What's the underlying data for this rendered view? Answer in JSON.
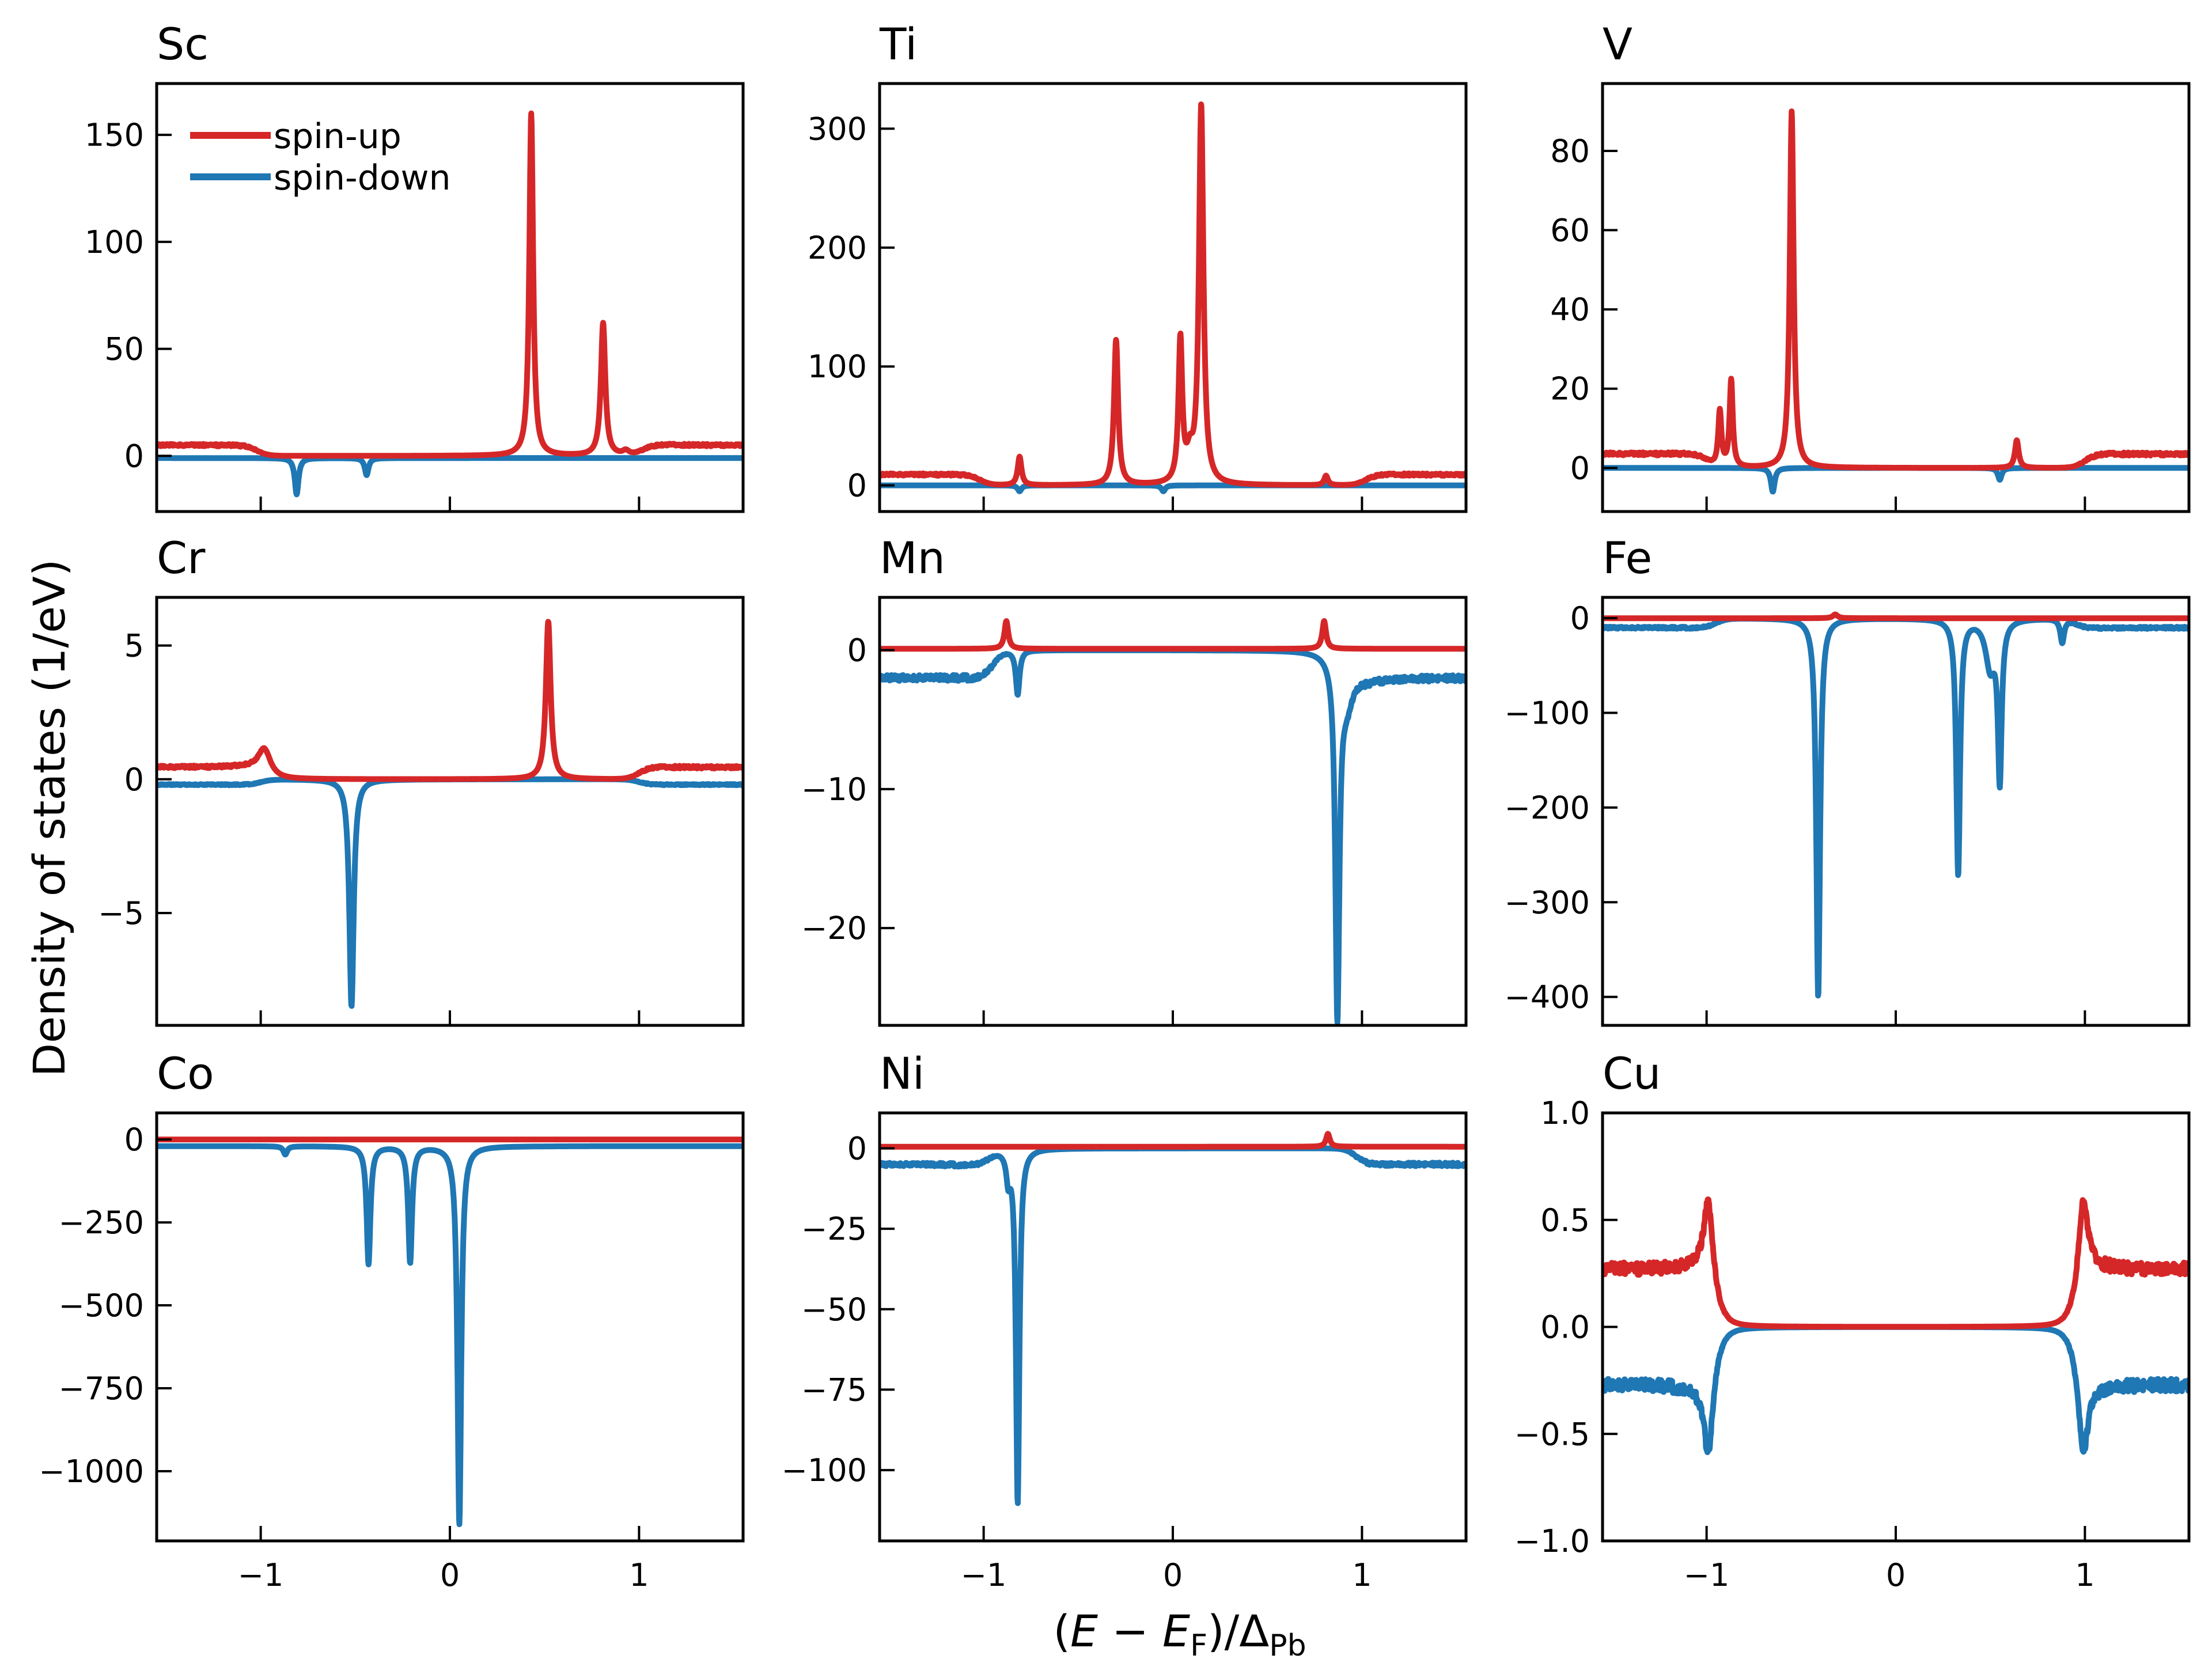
{
  "figure": {
    "ylabel": "Density of states (1/eV)",
    "xlabel_parts": {
      "open": "(",
      "E": "E",
      "minus": " − ",
      "EF": "E",
      "F_sub": "F",
      "mid": ")/Δ",
      "Pb_sub": "Pb"
    },
    "legend": [
      "spin-up",
      "spin-down"
    ],
    "colors": {
      "spin_up": "#d62728",
      "spin_down": "#1f77b4"
    }
  },
  "chart_data": [
    {
      "type": "line",
      "title": "Sc",
      "xlim": [
        -1.55,
        1.55
      ],
      "ylim": [
        -26,
        174
      ],
      "xticks": [
        -1,
        0,
        1
      ],
      "xtick_labels": [
        "−1",
        "0",
        "1"
      ],
      "yticks": [
        0,
        50,
        100,
        150
      ],
      "ytick_labels": [
        "0",
        "50",
        "100",
        "150"
      ],
      "series": [
        {
          "name": "spin-up",
          "baseline": 5,
          "gap": 1.02,
          "peaks": [
            [
              0.43,
              160,
              0.012
            ],
            [
              0.81,
              62,
              0.014
            ],
            [
              0.93,
              2,
              0.02
            ]
          ]
        },
        {
          "name": "spin-down",
          "baseline": -1,
          "gap": 0,
          "peaks": [
            [
              -0.81,
              -17,
              0.012
            ],
            [
              -0.44,
              -8,
              0.012
            ]
          ]
        }
      ]
    },
    {
      "type": "line",
      "title": "Ti",
      "xlim": [
        -1.55,
        1.55
      ],
      "ylim": [
        -22,
        338
      ],
      "xticks": [
        -1,
        0,
        1
      ],
      "xtick_labels": [
        "−1",
        "0",
        "1"
      ],
      "yticks": [
        0,
        100,
        200,
        300
      ],
      "ytick_labels": [
        "0",
        "100",
        "200",
        "300"
      ],
      "series": [
        {
          "name": "spin-up",
          "baseline": 9,
          "gap": 1.02,
          "peaks": [
            [
              -0.81,
              24,
              0.012
            ],
            [
              -0.3,
              122,
              0.013
            ],
            [
              0.04,
              120,
              0.012
            ],
            [
              0.09,
              20,
              0.02
            ],
            [
              0.15,
              318,
              0.014
            ],
            [
              0.81,
              8,
              0.012
            ]
          ]
        },
        {
          "name": "spin-down",
          "baseline": 0,
          "gap": 0,
          "peaks": [
            [
              -0.81,
              -5,
              0.012
            ],
            [
              -0.05,
              -5,
              0.012
            ]
          ]
        }
      ]
    },
    {
      "type": "line",
      "title": "V",
      "xlim": [
        -1.55,
        1.55
      ],
      "ylim": [
        -11,
        97
      ],
      "xticks": [
        -1,
        0,
        1
      ],
      "xtick_labels": [
        "−1",
        "0",
        "1"
      ],
      "yticks": [
        0,
        20,
        40,
        60,
        80
      ],
      "ytick_labels": [
        "0",
        "20",
        "40",
        "60",
        "80"
      ],
      "series": [
        {
          "name": "spin-up",
          "baseline": 3.5,
          "gap": 1.0,
          "peaks": [
            [
              -0.93,
              14,
              0.01
            ],
            [
              -0.87,
              22,
              0.01
            ],
            [
              -0.55,
              90,
              0.012
            ],
            [
              0.64,
              7,
              0.012
            ]
          ]
        },
        {
          "name": "spin-down",
          "baseline": 0,
          "gap": 0,
          "peaks": [
            [
              -0.65,
              -6,
              0.012
            ],
            [
              0.55,
              -3,
              0.012
            ]
          ]
        }
      ]
    },
    {
      "type": "line",
      "title": "Cr",
      "xlim": [
        -1.55,
        1.55
      ],
      "ylim": [
        -9.2,
        6.8
      ],
      "xticks": [
        -1,
        0,
        1
      ],
      "xtick_labels": [
        "−1",
        "0",
        "1"
      ],
      "yticks": [
        -5,
        0,
        5
      ],
      "ytick_labels": [
        "−5",
        "0",
        "5"
      ],
      "series": [
        {
          "name": "spin-up",
          "baseline": 0.45,
          "gap": 1.0,
          "peaks": [
            [
              -0.98,
              1.0,
              0.04
            ],
            [
              0.52,
              5.9,
              0.015
            ]
          ]
        },
        {
          "name": "spin-down",
          "baseline": -0.2,
          "gap": 1.0,
          "peaks": [
            [
              -0.52,
              -8.5,
              0.014
            ]
          ]
        }
      ]
    },
    {
      "type": "line",
      "title": "Mn",
      "xlim": [
        -1.55,
        1.55
      ],
      "ylim": [
        -27,
        3.8
      ],
      "xticks": [
        -1,
        0,
        1
      ],
      "xtick_labels": [
        "−1",
        "0",
        "1"
      ],
      "yticks": [
        -20,
        -10,
        0
      ],
      "ytick_labels": [
        "−20",
        "−10",
        "0"
      ],
      "series": [
        {
          "name": "spin-up",
          "baseline": 0.1,
          "gap": 0,
          "peaks": [
            [
              -0.88,
              2.0,
              0.012
            ],
            [
              0.8,
              2.0,
              0.012
            ]
          ]
        },
        {
          "name": "spin-down",
          "baseline": -2,
          "gap": 0.95,
          "peaks": [
            [
              -0.82,
              -3.2,
              0.012
            ],
            [
              0.87,
              -25.5,
              0.013
            ],
            [
              0.92,
              -3,
              0.04
            ]
          ]
        }
      ]
    },
    {
      "type": "line",
      "title": "Fe",
      "xlim": [
        -1.55,
        1.55
      ],
      "ylim": [
        -430,
        22
      ],
      "xticks": [
        -1,
        0,
        1
      ],
      "xtick_labels": [
        "−1",
        "0",
        "1"
      ],
      "yticks": [
        -400,
        -300,
        -200,
        -100,
        0
      ],
      "ytick_labels": [
        "−400",
        "−300",
        "−200",
        "−100",
        "0"
      ],
      "series": [
        {
          "name": "spin-up",
          "baseline": 0,
          "gap": 0,
          "peaks": [
            [
              -0.32,
              4,
              0.015
            ]
          ]
        },
        {
          "name": "spin-down",
          "baseline": -10,
          "gap": 0.95,
          "peaks": [
            [
              -0.41,
              -400,
              0.012
            ],
            [
              0.33,
              -270,
              0.012
            ],
            [
              0.5,
              -50,
              0.03
            ],
            [
              0.55,
              -165,
              0.012
            ],
            [
              0.88,
              -25,
              0.012
            ]
          ]
        }
      ]
    },
    {
      "type": "line",
      "title": "Co",
      "xlim": [
        -1.55,
        1.55
      ],
      "ylim": [
        -1210,
        80
      ],
      "xticks": [
        -1,
        0,
        1
      ],
      "xtick_labels": [
        "−1",
        "0",
        "1"
      ],
      "yticks": [
        -1000,
        -750,
        -500,
        -250,
        0
      ],
      "ytick_labels": [
        "−1000",
        "−750",
        "−500",
        "−250",
        "0"
      ],
      "series": [
        {
          "name": "spin-up",
          "baseline": 0,
          "gap": 0,
          "peaks": []
        },
        {
          "name": "spin-down",
          "baseline": -20,
          "gap": 0,
          "peaks": [
            [
              -0.87,
              -25,
              0.012
            ],
            [
              -0.43,
              -355,
              0.012
            ],
            [
              -0.21,
              -350,
              0.012
            ],
            [
              0.05,
              -1140,
              0.012
            ]
          ]
        }
      ]
    },
    {
      "type": "line",
      "title": "Ni",
      "xlim": [
        -1.55,
        1.55
      ],
      "ylim": [
        -122,
        11
      ],
      "xticks": [
        -1,
        0,
        1
      ],
      "xtick_labels": [
        "−1",
        "0",
        "1"
      ],
      "yticks": [
        -100,
        -75,
        -50,
        -25,
        0
      ],
      "ytick_labels": [
        "−100",
        "−75",
        "−50",
        "−25",
        "0"
      ],
      "series": [
        {
          "name": "spin-up",
          "baseline": 0.5,
          "gap": 0,
          "peaks": [
            [
              0.82,
              4,
              0.012
            ]
          ]
        },
        {
          "name": "spin-down",
          "baseline": -5,
          "gap": 0.97,
          "peaks": [
            [
              -0.87,
              -8,
              0.012
            ],
            [
              -0.82,
              -110,
              0.011
            ]
          ]
        }
      ]
    },
    {
      "type": "line",
      "title": "Cu",
      "xlim": [
        -1.55,
        1.55
      ],
      "ylim": [
        -1.0,
        1.0
      ],
      "xticks": [
        -1,
        0,
        1
      ],
      "xtick_labels": [
        "−1",
        "0",
        "1"
      ],
      "yticks": [
        -1.0,
        -0.5,
        0.0,
        0.5,
        1.0
      ],
      "ytick_labels": [
        "−1.0",
        "−0.5",
        "0.0",
        "0.5",
        "1.0"
      ],
      "series": [
        {
          "name": "spin-up",
          "baseline": 0.27,
          "gap": 0.97,
          "peaks": [
            [
              -0.99,
              0.4,
              0.03
            ],
            [
              0.99,
              0.4,
              0.03
            ]
          ]
        },
        {
          "name": "spin-down",
          "baseline": -0.27,
          "gap": 0.97,
          "peaks": [
            [
              -0.99,
              -0.4,
              0.03
            ],
            [
              0.99,
              -0.4,
              0.03
            ]
          ]
        }
      ]
    }
  ]
}
